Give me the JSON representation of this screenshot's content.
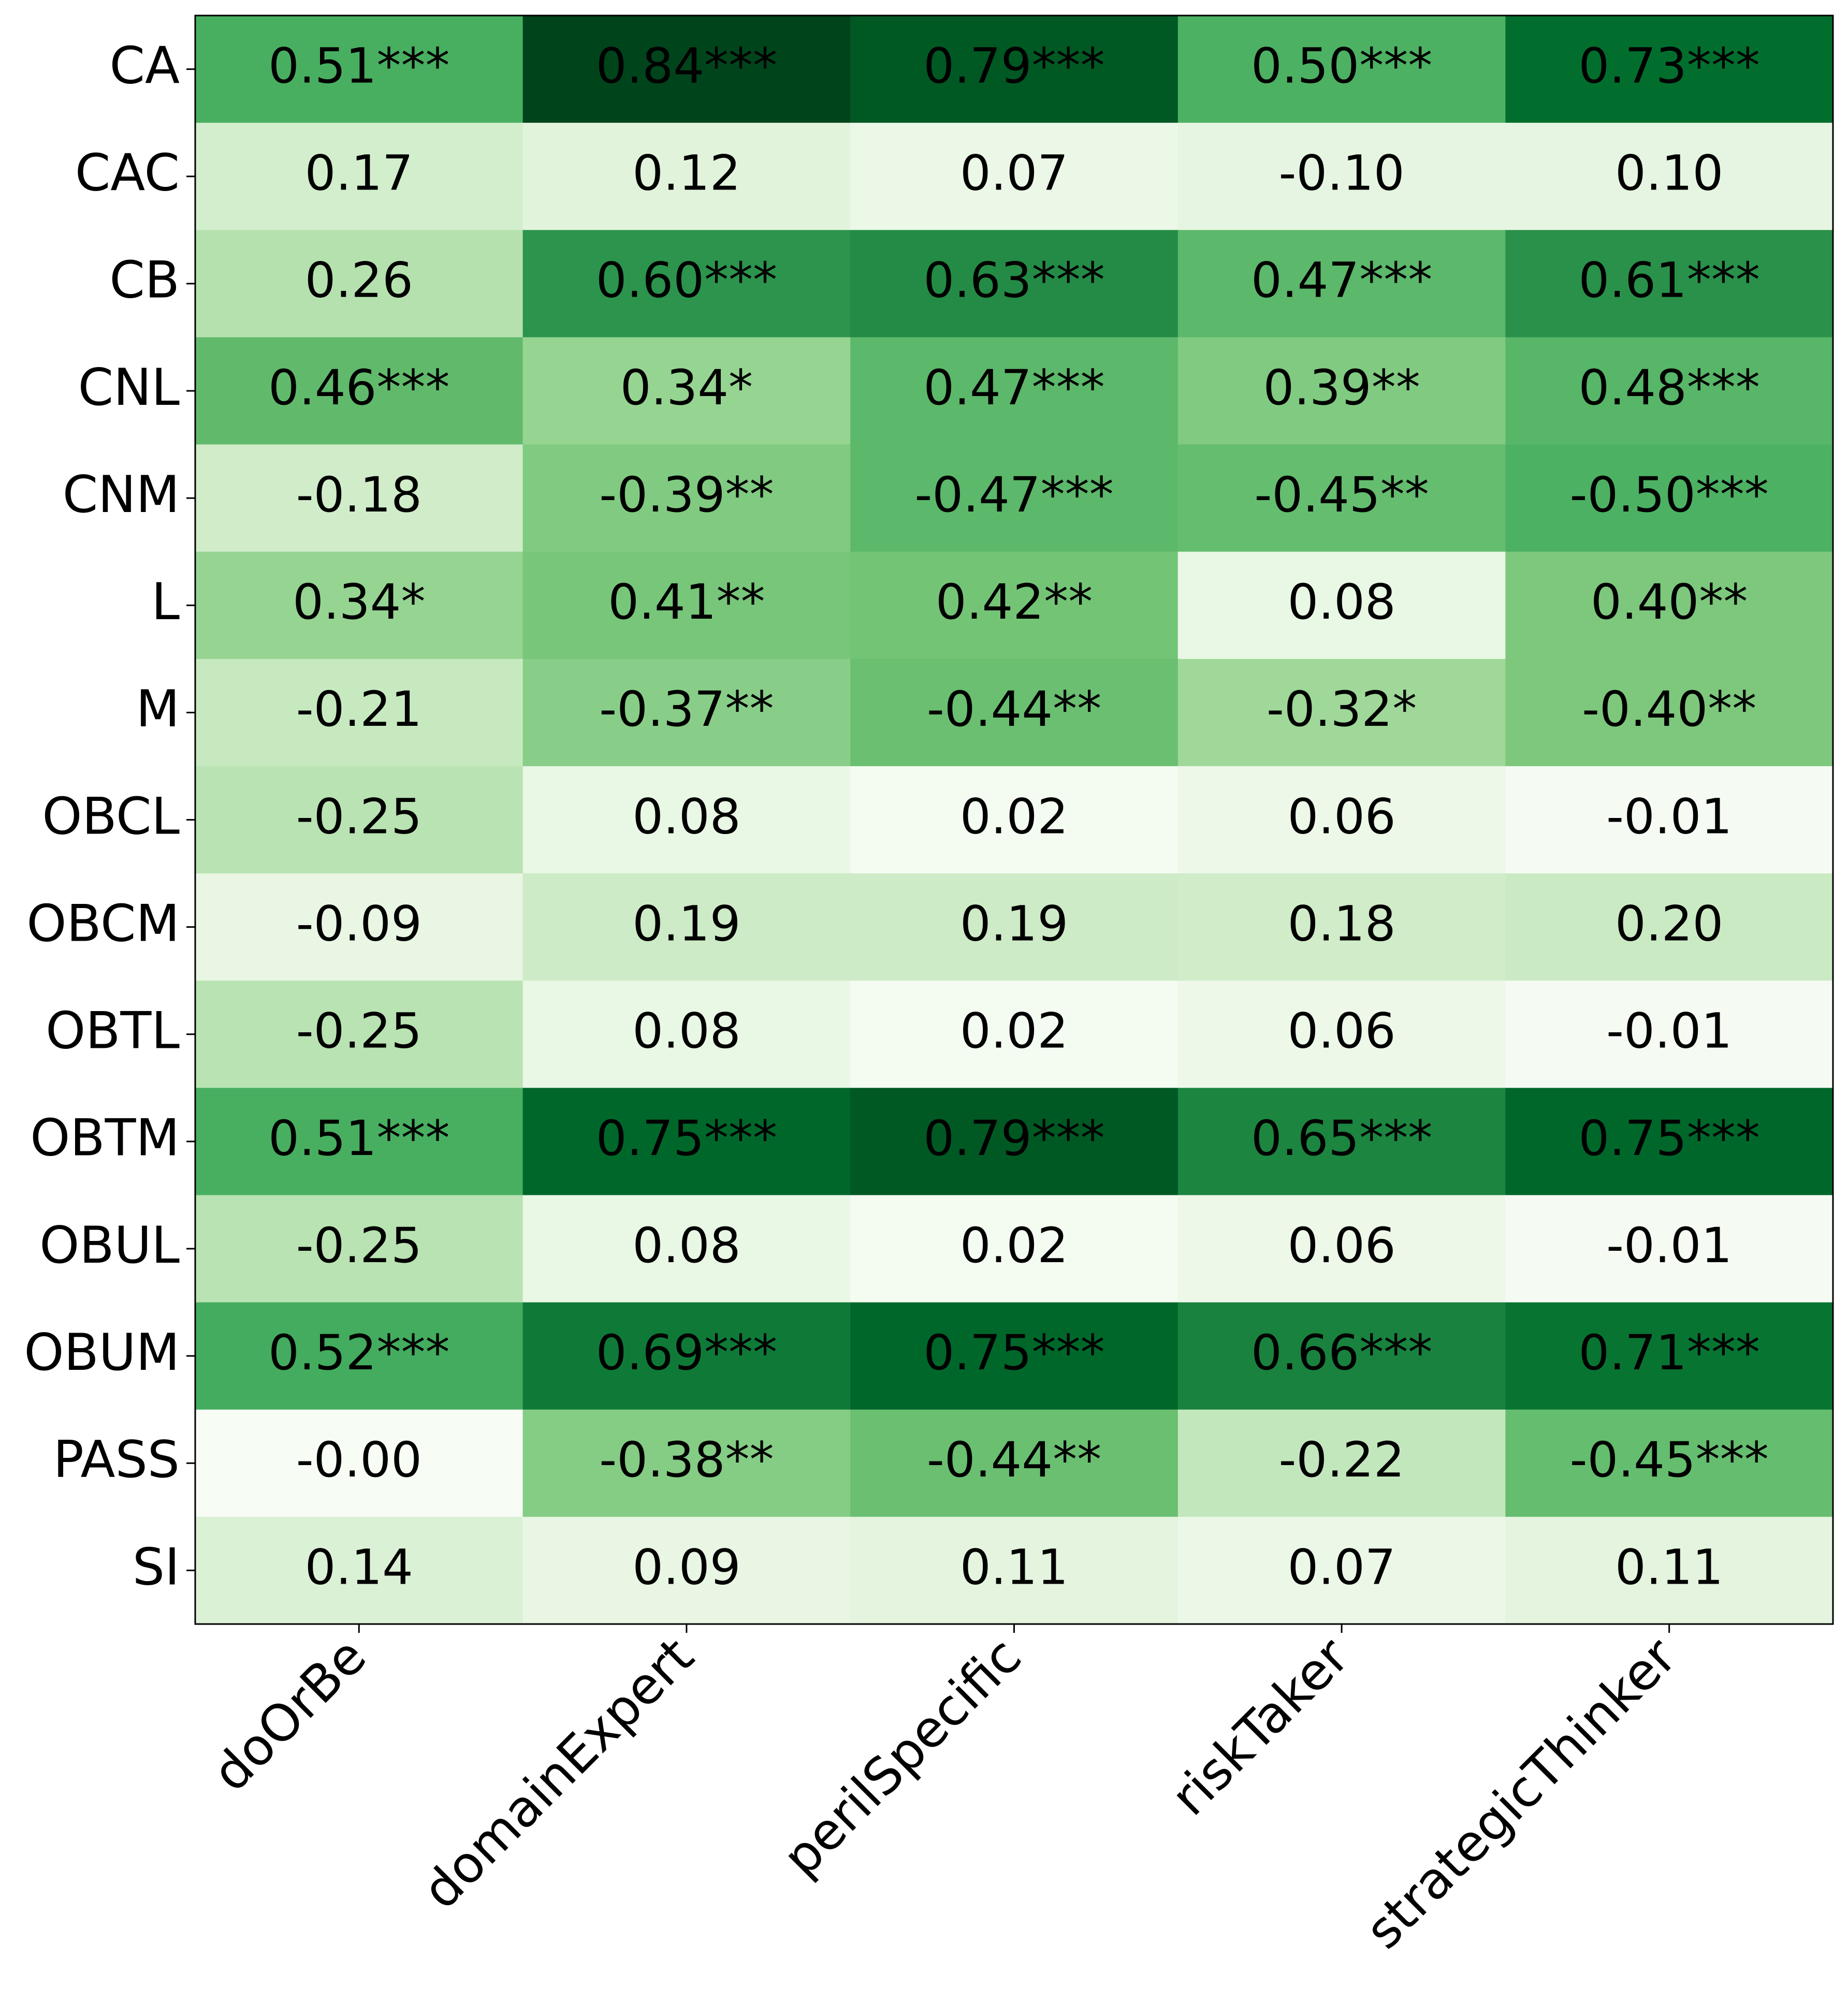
{
  "chart_data": {
    "type": "heatmap",
    "colormap": "Greens",
    "color_by": "absolute",
    "x_categories": [
      "doOrBe",
      "domainExpert",
      "perilSpecific",
      "riskTaker",
      "strategicThinker"
    ],
    "y_categories": [
      "CA",
      "CAC",
      "CB",
      "CNL",
      "CNM",
      "L",
      "M",
      "OBCL",
      "OBCM",
      "OBTL",
      "OBTM",
      "OBUL",
      "OBUM",
      "PASS",
      "SI"
    ],
    "values": [
      [
        0.51,
        0.84,
        0.79,
        0.5,
        0.73
      ],
      [
        0.17,
        0.12,
        0.07,
        -0.1,
        0.1
      ],
      [
        0.26,
        0.6,
        0.63,
        0.47,
        0.61
      ],
      [
        0.46,
        0.34,
        0.47,
        0.39,
        0.48
      ],
      [
        -0.18,
        -0.39,
        -0.47,
        -0.45,
        -0.5
      ],
      [
        0.34,
        0.41,
        0.42,
        0.08,
        0.4
      ],
      [
        -0.21,
        -0.37,
        -0.44,
        -0.32,
        -0.4
      ],
      [
        -0.25,
        0.08,
        0.02,
        0.06,
        -0.01
      ],
      [
        -0.09,
        0.19,
        0.19,
        0.18,
        0.2
      ],
      [
        -0.25,
        0.08,
        0.02,
        0.06,
        -0.01
      ],
      [
        0.51,
        0.75,
        0.79,
        0.65,
        0.75
      ],
      [
        -0.25,
        0.08,
        0.02,
        0.06,
        -0.01
      ],
      [
        0.52,
        0.69,
        0.75,
        0.66,
        0.71
      ],
      [
        0,
        -0.38,
        -0.44,
        -0.22,
        -0.45
      ],
      [
        0.14,
        0.09,
        0.11,
        0.07,
        0.11
      ]
    ],
    "value_labels": [
      [
        "0.51***",
        "0.84***",
        "0.79***",
        "0.50***",
        "0.73***"
      ],
      [
        "0.17",
        "0.12",
        "0.07",
        "-0.10",
        "0.10"
      ],
      [
        "0.26",
        "0.60***",
        "0.63***",
        "0.47***",
        "0.61***"
      ],
      [
        "0.46***",
        "0.34*",
        "0.47***",
        "0.39**",
        "0.48***"
      ],
      [
        "-0.18",
        "-0.39**",
        "-0.47***",
        "-0.45**",
        "-0.50***"
      ],
      [
        "0.34*",
        "0.41**",
        "0.42**",
        "0.08",
        "0.40**"
      ],
      [
        "-0.21",
        "-0.37**",
        "-0.44**",
        "-0.32*",
        "-0.40**"
      ],
      [
        "-0.25",
        "0.08",
        "0.02",
        "0.06",
        "-0.01"
      ],
      [
        "-0.09",
        "0.19",
        "0.19",
        "0.18",
        "0.20"
      ],
      [
        "-0.25",
        "0.08",
        "0.02",
        "0.06",
        "-0.01"
      ],
      [
        "0.51***",
        "0.75***",
        "0.79***",
        "0.65***",
        "0.75***"
      ],
      [
        "-0.25",
        "0.08",
        "0.02",
        "0.06",
        "-0.01"
      ],
      [
        "0.52***",
        "0.69***",
        "0.75***",
        "0.66***",
        "0.71***"
      ],
      [
        "-0.00",
        "-0.38**",
        "-0.44**",
        "-0.22",
        "-0.45***"
      ],
      [
        "0.14",
        "0.09",
        "0.11",
        "0.07",
        "0.11"
      ]
    ]
  }
}
